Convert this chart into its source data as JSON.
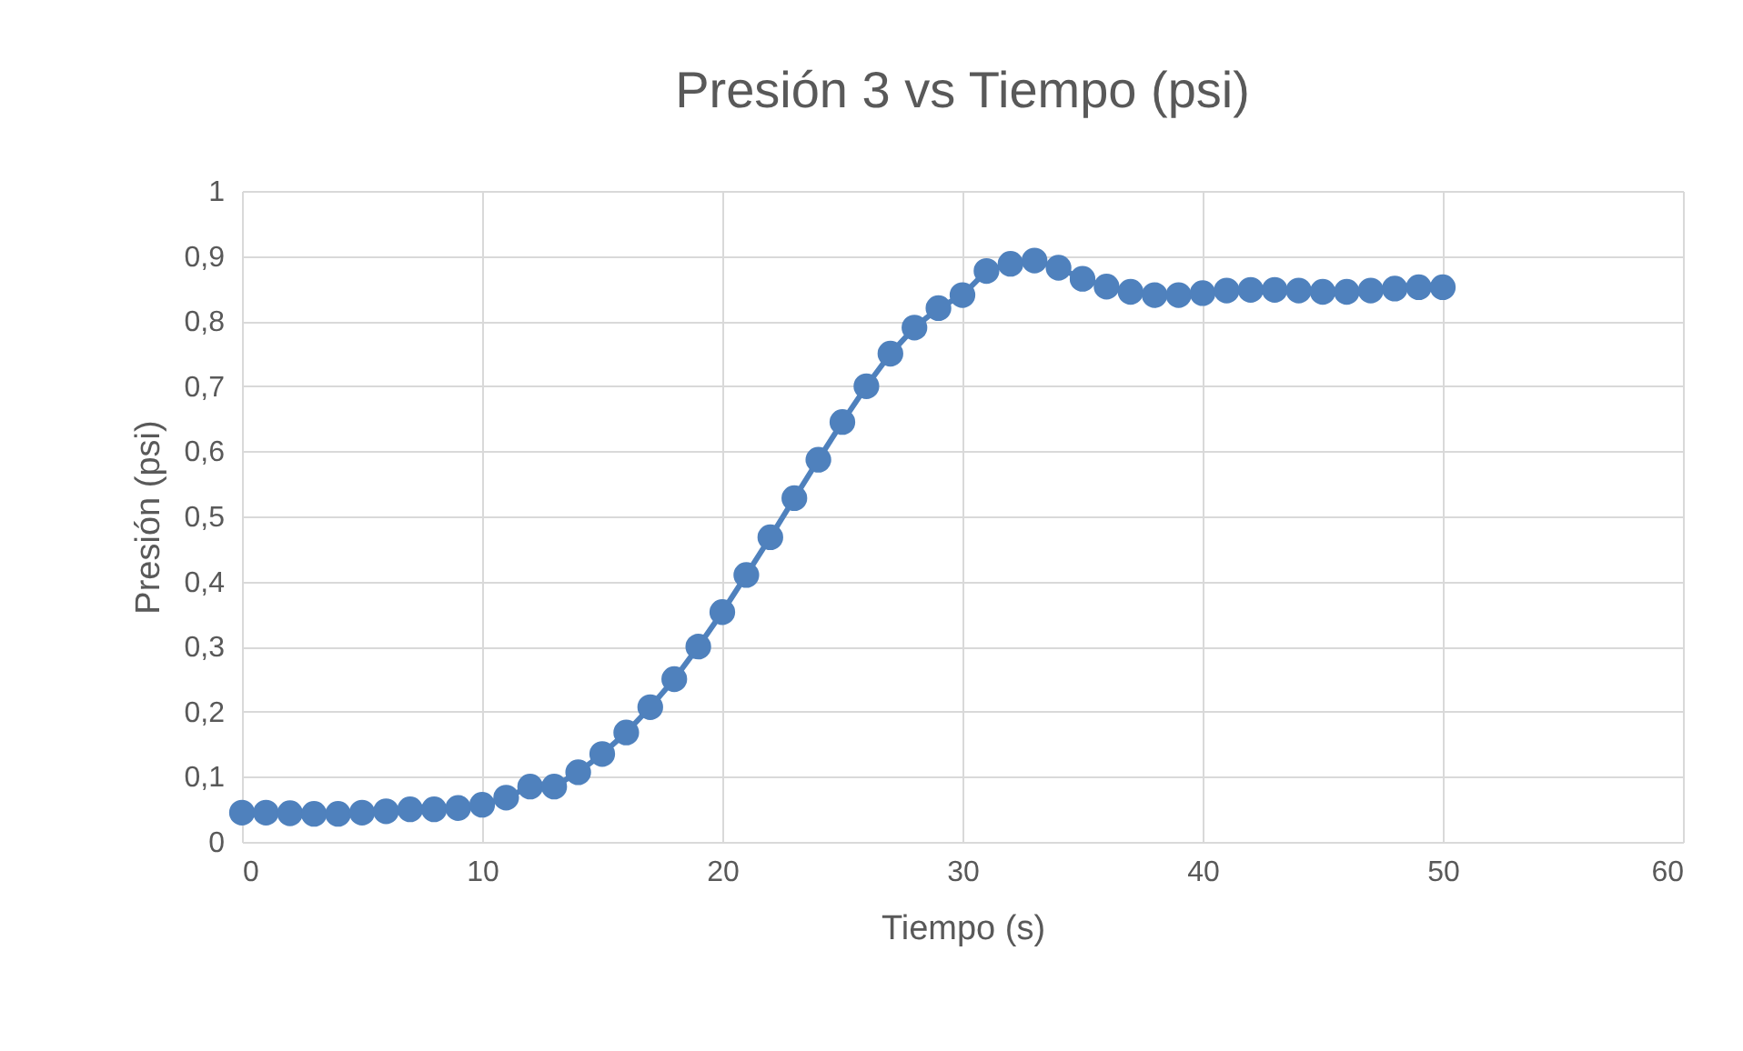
{
  "chart_data": {
    "type": "line",
    "title": "Presión 3 vs Tiempo (psi)",
    "xlabel": "Tiempo (s)",
    "ylabel": "Presión (psi)",
    "x": [
      0,
      1,
      2,
      3,
      4,
      5,
      6,
      7,
      8,
      9,
      10,
      11,
      12,
      13,
      14,
      15,
      16,
      17,
      18,
      19,
      20,
      21,
      22,
      23,
      24,
      25,
      26,
      27,
      28,
      29,
      30,
      31,
      32,
      33,
      34,
      35,
      36,
      37,
      38,
      39,
      40,
      41,
      42,
      43,
      44,
      45,
      46,
      47,
      48,
      49,
      50
    ],
    "series": [
      {
        "color": "#4f81bd",
        "values": [
          0.045,
          0.045,
          0.044,
          0.043,
          0.043,
          0.045,
          0.047,
          0.05,
          0.05,
          0.052,
          0.057,
          0.068,
          0.085,
          0.085,
          0.107,
          0.135,
          0.168,
          0.207,
          0.25,
          0.3,
          0.353,
          0.41,
          0.468,
          0.528,
          0.587,
          0.645,
          0.7,
          0.75,
          0.79,
          0.82,
          0.84,
          0.877,
          0.888,
          0.893,
          0.882,
          0.865,
          0.853,
          0.845,
          0.84,
          0.84,
          0.843,
          0.847,
          0.848,
          0.848,
          0.847,
          0.845,
          0.845,
          0.847,
          0.85,
          0.852,
          0.852
        ]
      }
    ],
    "xlim": [
      0,
      60
    ],
    "xticks": [
      0,
      10,
      20,
      30,
      40,
      50,
      60
    ],
    "ylim": [
      0,
      1
    ],
    "yticks": [
      {
        "value": 0,
        "label": "0"
      },
      {
        "value": 0.1,
        "label": "0,1"
      },
      {
        "value": 0.2,
        "label": "0,2"
      },
      {
        "value": 0.3,
        "label": "0,3"
      },
      {
        "value": 0.4,
        "label": "0,4"
      },
      {
        "value": 0.5,
        "label": "0,5"
      },
      {
        "value": 0.6,
        "label": "0,6"
      },
      {
        "value": 0.7,
        "label": "0,7"
      },
      {
        "value": 0.8,
        "label": "0,8"
      },
      {
        "value": 0.9,
        "label": "0,9"
      },
      {
        "value": 1,
        "label": "1"
      }
    ],
    "grid": true,
    "marker": "circle",
    "line_style": "solid"
  }
}
